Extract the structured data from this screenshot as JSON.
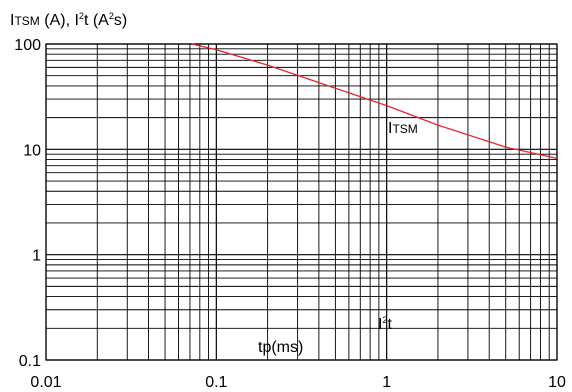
{
  "chart_data": {
    "type": "line",
    "ylabel_parts": {
      "i_main": "I",
      "i_sub": "TSM",
      "i_unit": " (A), ",
      "i2t_main": "I",
      "i2t_sup": "2",
      "i2t_t": "t (A",
      "i2t_unit_sup": "2",
      "i2t_end": "s)"
    },
    "xlabel": "tp(ms)",
    "x_scale": "log",
    "y_scale": "log",
    "xlim": [
      0.01,
      10
    ],
    "ylim": [
      0.1,
      100
    ],
    "x_ticks": [
      "0.01",
      "0.1",
      "1",
      "10"
    ],
    "y_ticks": [
      "0.1",
      "1",
      "10",
      "100"
    ],
    "grid": true,
    "series": [
      {
        "name_main": "I",
        "name_sub": "TSM",
        "color": "#e8262d",
        "x": [
          0.072,
          0.1,
          0.2,
          0.5,
          1,
          2,
          5,
          10
        ],
        "y": [
          100,
          88,
          63,
          38,
          26,
          17,
          10.5,
          8.2
        ]
      }
    ],
    "i2t_label_main": "I",
    "i2t_label_sup": "2",
    "i2t_label_end": "t"
  }
}
